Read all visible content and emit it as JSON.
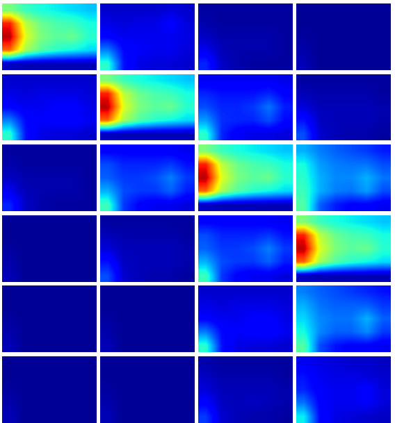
{
  "chart_data": {
    "type": "heatmap",
    "tick_labels": false,
    "zlim": [
      0,
      1
    ],
    "color": "jet",
    "panels": [
      [
        [
          [
            0.5,
            0.42,
            0.38,
            0.36,
            0.34,
            0.32
          ],
          [
            0.88,
            0.58,
            0.48,
            0.44,
            0.42,
            0.38
          ],
          [
            0.95,
            0.62,
            0.5,
            0.46,
            0.48,
            0.4
          ],
          [
            0.8,
            0.55,
            0.45,
            0.4,
            0.37,
            0.34
          ],
          [
            0.06,
            0.05,
            0.05,
            0.05,
            0.05,
            0.05
          ]
        ],
        [
          [
            0.07,
            0.07,
            0.07,
            0.07,
            0.08,
            0.07
          ],
          [
            0.09,
            0.08,
            0.09,
            0.09,
            0.12,
            0.08
          ],
          [
            0.12,
            0.1,
            0.1,
            0.1,
            0.1,
            0.09
          ],
          [
            0.25,
            0.13,
            0.11,
            0.1,
            0.1,
            0.08
          ],
          [
            0.4,
            0.14,
            0.09,
            0.08,
            0.08,
            0.07
          ]
        ],
        [
          [
            0.03,
            0.03,
            0.03,
            0.03,
            0.03,
            0.03
          ],
          [
            0.04,
            0.03,
            0.03,
            0.03,
            0.03,
            0.03
          ],
          [
            0.06,
            0.04,
            0.04,
            0.04,
            0.04,
            0.03
          ],
          [
            0.1,
            0.05,
            0.04,
            0.04,
            0.04,
            0.03
          ],
          [
            0.16,
            0.06,
            0.04,
            0.03,
            0.03,
            0.03
          ]
        ],
        [
          [
            0.02,
            0.02,
            0.02,
            0.02,
            0.02,
            0.02
          ],
          [
            0.02,
            0.02,
            0.02,
            0.02,
            0.02,
            0.02
          ],
          [
            0.03,
            0.02,
            0.02,
            0.02,
            0.02,
            0.02
          ],
          [
            0.04,
            0.02,
            0.02,
            0.02,
            0.02,
            0.02
          ],
          [
            0.05,
            0.02,
            0.02,
            0.02,
            0.02,
            0.02
          ]
        ]
      ],
      [
        [
          [
            0.07,
            0.07,
            0.07,
            0.07,
            0.07,
            0.07
          ],
          [
            0.09,
            0.08,
            0.09,
            0.09,
            0.09,
            0.08
          ],
          [
            0.12,
            0.1,
            0.1,
            0.12,
            0.12,
            0.09
          ],
          [
            0.25,
            0.13,
            0.11,
            0.12,
            0.13,
            0.1
          ],
          [
            0.4,
            0.14,
            0.09,
            0.08,
            0.08,
            0.07
          ]
        ],
        [
          [
            0.5,
            0.42,
            0.38,
            0.36,
            0.34,
            0.32
          ],
          [
            0.88,
            0.58,
            0.48,
            0.44,
            0.42,
            0.38
          ],
          [
            0.95,
            0.62,
            0.5,
            0.46,
            0.48,
            0.4
          ],
          [
            0.8,
            0.55,
            0.45,
            0.4,
            0.37,
            0.34
          ],
          [
            0.06,
            0.05,
            0.05,
            0.05,
            0.05,
            0.05
          ]
        ],
        [
          [
            0.1,
            0.1,
            0.1,
            0.1,
            0.1,
            0.09
          ],
          [
            0.16,
            0.14,
            0.14,
            0.14,
            0.16,
            0.12
          ],
          [
            0.2,
            0.16,
            0.16,
            0.18,
            0.24,
            0.15
          ],
          [
            0.28,
            0.17,
            0.16,
            0.16,
            0.2,
            0.13
          ],
          [
            0.4,
            0.16,
            0.11,
            0.09,
            0.09,
            0.08
          ]
        ],
        [
          [
            0.03,
            0.03,
            0.03,
            0.03,
            0.03,
            0.03
          ],
          [
            0.05,
            0.04,
            0.04,
            0.04,
            0.04,
            0.03
          ],
          [
            0.08,
            0.05,
            0.05,
            0.05,
            0.05,
            0.04
          ],
          [
            0.14,
            0.06,
            0.05,
            0.05,
            0.05,
            0.04
          ],
          [
            0.2,
            0.07,
            0.05,
            0.04,
            0.04,
            0.03
          ]
        ]
      ],
      [
        [
          [
            0.03,
            0.03,
            0.03,
            0.03,
            0.03,
            0.03
          ],
          [
            0.04,
            0.03,
            0.03,
            0.03,
            0.03,
            0.03
          ],
          [
            0.06,
            0.04,
            0.04,
            0.04,
            0.04,
            0.03
          ],
          [
            0.1,
            0.05,
            0.04,
            0.04,
            0.04,
            0.03
          ],
          [
            0.16,
            0.06,
            0.04,
            0.03,
            0.03,
            0.03
          ]
        ],
        [
          [
            0.12,
            0.12,
            0.12,
            0.12,
            0.11,
            0.1
          ],
          [
            0.2,
            0.16,
            0.16,
            0.16,
            0.18,
            0.14
          ],
          [
            0.22,
            0.18,
            0.18,
            0.2,
            0.25,
            0.18
          ],
          [
            0.3,
            0.2,
            0.18,
            0.18,
            0.22,
            0.15
          ],
          [
            0.42,
            0.18,
            0.12,
            0.1,
            0.1,
            0.08
          ]
        ],
        [
          [
            0.5,
            0.42,
            0.38,
            0.36,
            0.34,
            0.32
          ],
          [
            0.88,
            0.58,
            0.48,
            0.44,
            0.42,
            0.38
          ],
          [
            0.95,
            0.62,
            0.5,
            0.46,
            0.48,
            0.4
          ],
          [
            0.8,
            0.55,
            0.45,
            0.4,
            0.37,
            0.34
          ],
          [
            0.06,
            0.05,
            0.05,
            0.05,
            0.05,
            0.05
          ]
        ],
        [
          [
            0.3,
            0.25,
            0.22,
            0.2,
            0.18,
            0.15
          ],
          [
            0.38,
            0.28,
            0.25,
            0.24,
            0.24,
            0.2
          ],
          [
            0.4,
            0.3,
            0.26,
            0.26,
            0.3,
            0.24
          ],
          [
            0.42,
            0.3,
            0.25,
            0.24,
            0.28,
            0.2
          ],
          [
            0.45,
            0.22,
            0.15,
            0.12,
            0.12,
            0.1
          ]
        ]
      ],
      [
        [
          [
            0.02,
            0.02,
            0.02,
            0.02,
            0.02,
            0.02
          ],
          [
            0.02,
            0.02,
            0.02,
            0.02,
            0.02,
            0.02
          ],
          [
            0.03,
            0.02,
            0.02,
            0.02,
            0.02,
            0.02
          ],
          [
            0.04,
            0.02,
            0.02,
            0.02,
            0.02,
            0.02
          ],
          [
            0.05,
            0.02,
            0.02,
            0.02,
            0.02,
            0.02
          ]
        ],
        [
          [
            0.03,
            0.03,
            0.03,
            0.03,
            0.03,
            0.03
          ],
          [
            0.05,
            0.04,
            0.04,
            0.04,
            0.04,
            0.03
          ],
          [
            0.08,
            0.05,
            0.05,
            0.05,
            0.05,
            0.04
          ],
          [
            0.14,
            0.06,
            0.05,
            0.05,
            0.05,
            0.04
          ],
          [
            0.2,
            0.07,
            0.05,
            0.04,
            0.04,
            0.03
          ]
        ],
        [
          [
            0.12,
            0.12,
            0.12,
            0.12,
            0.11,
            0.1
          ],
          [
            0.2,
            0.16,
            0.16,
            0.16,
            0.18,
            0.14
          ],
          [
            0.22,
            0.18,
            0.18,
            0.2,
            0.25,
            0.18
          ],
          [
            0.3,
            0.2,
            0.18,
            0.18,
            0.22,
            0.15
          ],
          [
            0.42,
            0.18,
            0.12,
            0.1,
            0.1,
            0.08
          ]
        ],
        [
          [
            0.5,
            0.42,
            0.38,
            0.36,
            0.34,
            0.32
          ],
          [
            0.88,
            0.58,
            0.48,
            0.44,
            0.42,
            0.38
          ],
          [
            0.95,
            0.62,
            0.5,
            0.46,
            0.48,
            0.4
          ],
          [
            0.8,
            0.55,
            0.45,
            0.4,
            0.37,
            0.34
          ],
          [
            0.06,
            0.05,
            0.05,
            0.05,
            0.05,
            0.05
          ]
        ]
      ],
      [
        [
          [
            0.02,
            0.02,
            0.02,
            0.02,
            0.02,
            0.02
          ],
          [
            0.02,
            0.02,
            0.02,
            0.02,
            0.02,
            0.02
          ],
          [
            0.03,
            0.02,
            0.02,
            0.02,
            0.02,
            0.02
          ],
          [
            0.04,
            0.02,
            0.02,
            0.02,
            0.02,
            0.02
          ],
          [
            0.05,
            0.02,
            0.02,
            0.02,
            0.02,
            0.02
          ]
        ],
        [
          [
            0.02,
            0.02,
            0.02,
            0.02,
            0.02,
            0.02
          ],
          [
            0.02,
            0.02,
            0.02,
            0.02,
            0.02,
            0.02
          ],
          [
            0.03,
            0.02,
            0.02,
            0.02,
            0.02,
            0.02
          ],
          [
            0.04,
            0.02,
            0.02,
            0.02,
            0.02,
            0.02
          ],
          [
            0.05,
            0.02,
            0.02,
            0.02,
            0.02,
            0.02
          ]
        ],
        [
          [
            0.07,
            0.07,
            0.07,
            0.07,
            0.07,
            0.07
          ],
          [
            0.09,
            0.08,
            0.09,
            0.09,
            0.09,
            0.08
          ],
          [
            0.12,
            0.1,
            0.1,
            0.12,
            0.12,
            0.09
          ],
          [
            0.25,
            0.13,
            0.11,
            0.12,
            0.13,
            0.1
          ],
          [
            0.4,
            0.14,
            0.09,
            0.08,
            0.08,
            0.07
          ]
        ],
        [
          [
            0.25,
            0.22,
            0.2,
            0.18,
            0.16,
            0.14
          ],
          [
            0.3,
            0.24,
            0.22,
            0.22,
            0.22,
            0.18
          ],
          [
            0.34,
            0.26,
            0.24,
            0.24,
            0.3,
            0.22
          ],
          [
            0.38,
            0.26,
            0.22,
            0.22,
            0.26,
            0.18
          ],
          [
            0.45,
            0.2,
            0.14,
            0.12,
            0.12,
            0.1
          ]
        ]
      ],
      [
        [
          [
            0.02,
            0.02,
            0.02,
            0.02,
            0.02,
            0.02
          ],
          [
            0.02,
            0.02,
            0.02,
            0.02,
            0.02,
            0.02
          ],
          [
            0.03,
            0.02,
            0.02,
            0.02,
            0.02,
            0.02
          ],
          [
            0.04,
            0.02,
            0.02,
            0.02,
            0.02,
            0.02
          ],
          [
            0.05,
            0.02,
            0.02,
            0.02,
            0.02,
            0.02
          ]
        ],
        [
          [
            0.02,
            0.02,
            0.02,
            0.02,
            0.02,
            0.02
          ],
          [
            0.02,
            0.02,
            0.02,
            0.02,
            0.02,
            0.02
          ],
          [
            0.03,
            0.02,
            0.02,
            0.02,
            0.02,
            0.02
          ],
          [
            0.04,
            0.02,
            0.02,
            0.02,
            0.02,
            0.02
          ],
          [
            0.05,
            0.02,
            0.02,
            0.02,
            0.02,
            0.02
          ]
        ],
        [
          [
            0.04,
            0.03,
            0.03,
            0.03,
            0.03,
            0.03
          ],
          [
            0.06,
            0.04,
            0.04,
            0.04,
            0.04,
            0.03
          ],
          [
            0.08,
            0.05,
            0.05,
            0.05,
            0.05,
            0.04
          ],
          [
            0.12,
            0.06,
            0.05,
            0.06,
            0.05,
            0.04
          ],
          [
            0.18,
            0.07,
            0.05,
            0.04,
            0.04,
            0.03
          ]
        ],
        [
          [
            0.1,
            0.09,
            0.08,
            0.07,
            0.07,
            0.06
          ],
          [
            0.14,
            0.1,
            0.09,
            0.09,
            0.08,
            0.07
          ],
          [
            0.16,
            0.11,
            0.1,
            0.1,
            0.12,
            0.08
          ],
          [
            0.24,
            0.12,
            0.1,
            0.1,
            0.11,
            0.08
          ],
          [
            0.36,
            0.13,
            0.09,
            0.08,
            0.07,
            0.06
          ]
        ]
      ]
    ]
  }
}
